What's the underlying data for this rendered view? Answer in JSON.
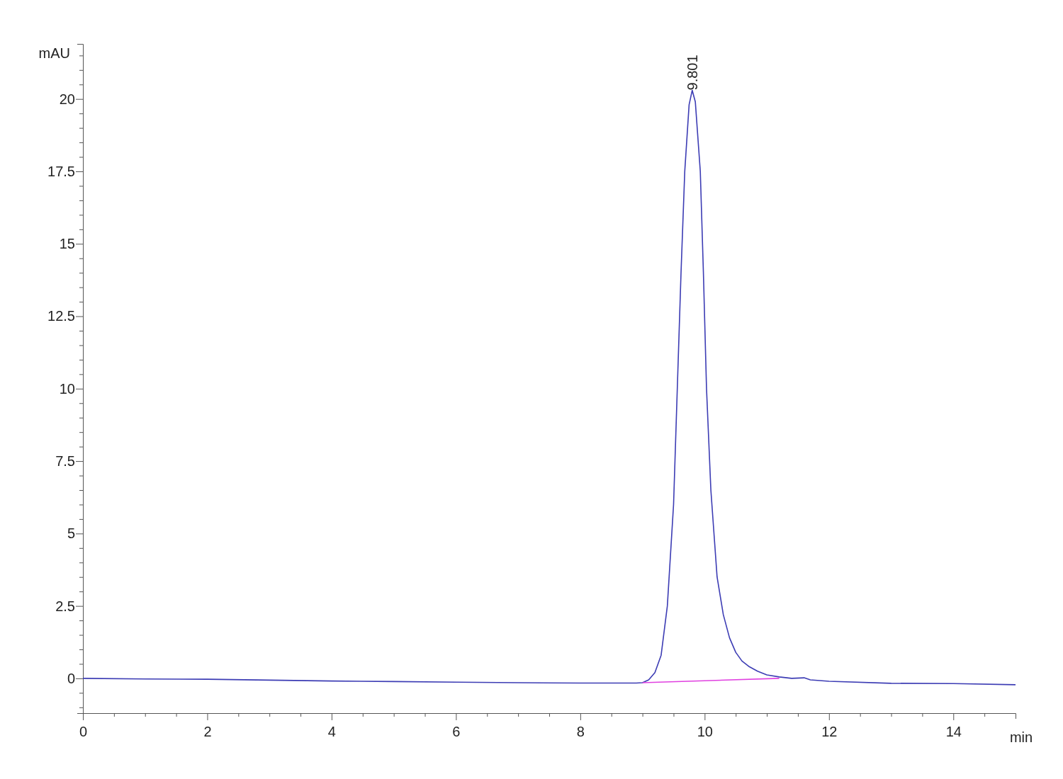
{
  "chart_data": {
    "type": "line",
    "xlabel": "min",
    "ylabel": "mAU",
    "xlim": [
      0,
      15
    ],
    "ylim": [
      -1.2,
      21.9
    ],
    "xticks": [
      0,
      {
        "value": 0.5,
        "label": null
      },
      {
        "value": 1,
        "label": null
      },
      {
        "value": 1.5,
        "label": null
      },
      2,
      {
        "value": 2.5,
        "label": null
      },
      {
        "value": 3,
        "label": null
      },
      {
        "value": 3.5,
        "label": null
      },
      4,
      {
        "value": 4.5,
        "label": null
      },
      {
        "value": 5,
        "label": null
      },
      {
        "value": 5.5,
        "label": null
      },
      6,
      {
        "value": 6.5,
        "label": null
      },
      {
        "value": 7,
        "label": null
      },
      {
        "value": 7.5,
        "label": null
      },
      8,
      {
        "value": 8.5,
        "label": null
      },
      {
        "value": 9,
        "label": null
      },
      {
        "value": 9.5,
        "label": null
      },
      10,
      {
        "value": 10.5,
        "label": null
      },
      {
        "value": 11,
        "label": null
      },
      {
        "value": 11.5,
        "label": null
      },
      12,
      {
        "value": 12.5,
        "label": null
      },
      {
        "value": 13,
        "label": null
      },
      {
        "value": 13.5,
        "label": null
      },
      14,
      {
        "value": 14.5,
        "label": null
      }
    ],
    "yticks": [
      {
        "value": -1,
        "label": null
      },
      {
        "value": -0.5,
        "label": null
      },
      0,
      {
        "value": 0.5,
        "label": null
      },
      {
        "value": 1,
        "label": null
      },
      {
        "value": 1.5,
        "label": null
      },
      {
        "value": 2,
        "label": null
      },
      2.5,
      {
        "value": 3,
        "label": null
      },
      {
        "value": 3.5,
        "label": null
      },
      {
        "value": 4,
        "label": null
      },
      {
        "value": 4.5,
        "label": null
      },
      5,
      {
        "value": 5.5,
        "label": null
      },
      {
        "value": 6,
        "label": null
      },
      {
        "value": 6.5,
        "label": null
      },
      {
        "value": 7,
        "label": null
      },
      7.5,
      {
        "value": 8,
        "label": null
      },
      {
        "value": 8.5,
        "label": null
      },
      {
        "value": 9,
        "label": null
      },
      {
        "value": 9.5,
        "label": null
      },
      10,
      {
        "value": 10.5,
        "label": null
      },
      {
        "value": 11,
        "label": null
      },
      {
        "value": 11.5,
        "label": null
      },
      {
        "value": 12,
        "label": null
      },
      12.5,
      {
        "value": 13,
        "label": null
      },
      {
        "value": 13.5,
        "label": null
      },
      {
        "value": 14,
        "label": null
      },
      {
        "value": 14.5,
        "label": null
      },
      15,
      {
        "value": 15.5,
        "label": null
      },
      {
        "value": 16,
        "label": null
      },
      {
        "value": 16.5,
        "label": null
      },
      {
        "value": 17,
        "label": null
      },
      17.5,
      {
        "value": 18,
        "label": null
      },
      {
        "value": 18.5,
        "label": null
      },
      {
        "value": 19,
        "label": null
      },
      {
        "value": 19.5,
        "label": null
      },
      20,
      {
        "value": 20.5,
        "label": null
      },
      {
        "value": 21,
        "label": null
      },
      {
        "value": 21.5,
        "label": null
      }
    ],
    "grid": false,
    "marker": "none",
    "line_style": "solid",
    "annotations": [
      {
        "text": "9.801",
        "x": 9.801,
        "y": 20.3
      }
    ],
    "series": [
      {
        "color": "#3c3cb4",
        "x": [
          0,
          1,
          2,
          3,
          4,
          5,
          6,
          7,
          8,
          8.9,
          9.0,
          9.1,
          9.2,
          9.3,
          9.4,
          9.5,
          9.56,
          9.62,
          9.68,
          9.75,
          9.8,
          9.85,
          9.93,
          9.98,
          10.03,
          10.1,
          10.2,
          10.3,
          10.4,
          10.5,
          10.6,
          10.72,
          10.85,
          11,
          11.2,
          11.4,
          11.6,
          11.7,
          12,
          13,
          14,
          15
        ],
        "values": [
          0,
          -0.02,
          -0.03,
          -0.06,
          -0.09,
          -0.11,
          -0.13,
          -0.15,
          -0.16,
          -0.16,
          -0.15,
          -0.05,
          0.2,
          0.8,
          2.5,
          6,
          10,
          14,
          17.5,
          19.8,
          20.3,
          19.9,
          17.5,
          14,
          10,
          6.5,
          3.5,
          2.2,
          1.4,
          0.9,
          0.6,
          0.4,
          0.25,
          0.12,
          0.05,
          0,
          0.02,
          -0.05,
          -0.1,
          -0.17,
          -0.18,
          -0.22
        ]
      },
      {
        "color": "#e040e0",
        "x": [
          9.0,
          11.2
        ],
        "values": [
          -0.15,
          0.0
        ]
      }
    ]
  }
}
